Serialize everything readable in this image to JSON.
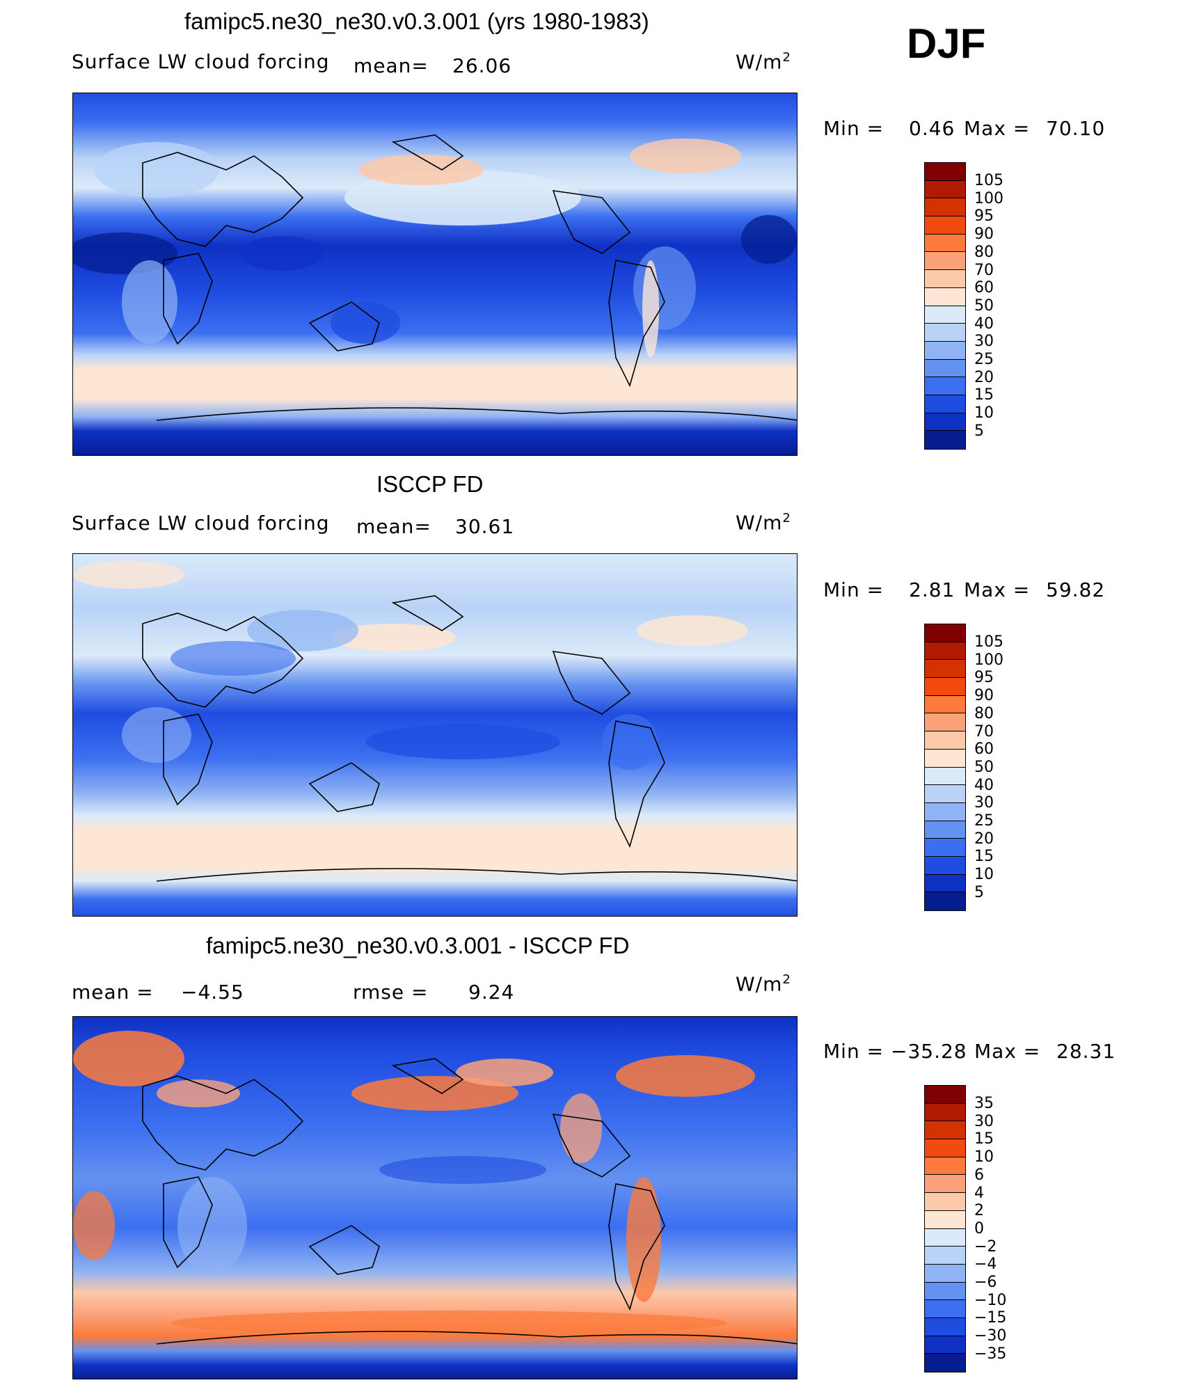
{
  "season": "DJF",
  "panels": [
    {
      "title": "famipc5.ne30_ne30.v0.3.001 (yrs 1980-1983)",
      "subtitle": "Surface LW cloud forcing",
      "mean_label": "mean=",
      "mean_value": "26.06",
      "units": "W/m",
      "units_sup": "2",
      "min_label": "Min  =",
      "min_value": "0.46",
      "max_label": "Max  =",
      "max_value": "70.10",
      "levels": [
        "105",
        "100",
        "95",
        "90",
        "80",
        "70",
        "60",
        "50",
        "40",
        "30",
        "25",
        "20",
        "15",
        "10",
        "5"
      ],
      "colors": [
        "#7e0000",
        "#b01a00",
        "#d43200",
        "#f24b10",
        "#fb7a3c",
        "#fba27a",
        "#fcc9aa",
        "#fde6d4",
        "#dbeaf8",
        "#b9d3f7",
        "#8fb3f3",
        "#6492f0",
        "#3c6ff0",
        "#1f4de0",
        "#0e31c4",
        "#061d90"
      ]
    },
    {
      "title": "ISCCP FD",
      "subtitle": "Surface LW cloud forcing",
      "mean_label": "mean=",
      "mean_value": "30.61",
      "units": "W/m",
      "units_sup": "2",
      "min_label": "Min  =",
      "min_value": "2.81",
      "max_label": "Max  =",
      "max_value": "59.82",
      "levels": [
        "105",
        "100",
        "95",
        "90",
        "80",
        "70",
        "60",
        "50",
        "40",
        "30",
        "25",
        "20",
        "15",
        "10",
        "5"
      ],
      "colors": [
        "#7e0000",
        "#b01a00",
        "#d43200",
        "#f24b10",
        "#fb7a3c",
        "#fba27a",
        "#fcc9aa",
        "#fde6d4",
        "#dbeaf8",
        "#b9d3f7",
        "#8fb3f3",
        "#6492f0",
        "#3c6ff0",
        "#1f4de0",
        "#0e31c4",
        "#061d90"
      ]
    },
    {
      "title": "famipc5.ne30_ne30.v0.3.001 - ISCCP FD",
      "mean_label": "mean  =",
      "mean_value": "−4.55",
      "rmse_label": "rmse  =",
      "rmse_value": "9.24",
      "units": "W/m",
      "units_sup": "2",
      "min_label": "Min  =",
      "min_value": "−35.28",
      "max_label": "Max  =",
      "max_value": "28.31",
      "levels": [
        "35",
        "30",
        "15",
        "10",
        "6",
        "4",
        "2",
        "0",
        "−2",
        "−4",
        "−6",
        "−10",
        "−15",
        "−30",
        "−35"
      ],
      "colors": [
        "#7e0000",
        "#b01a00",
        "#d43200",
        "#f24b10",
        "#fb7a3c",
        "#fba27a",
        "#fcc9aa",
        "#fde6d4",
        "#dbeaf8",
        "#b9d3f7",
        "#8fb3f3",
        "#6492f0",
        "#3c6ff0",
        "#1f4de0",
        "#0e31c4",
        "#061d90"
      ]
    }
  ]
}
